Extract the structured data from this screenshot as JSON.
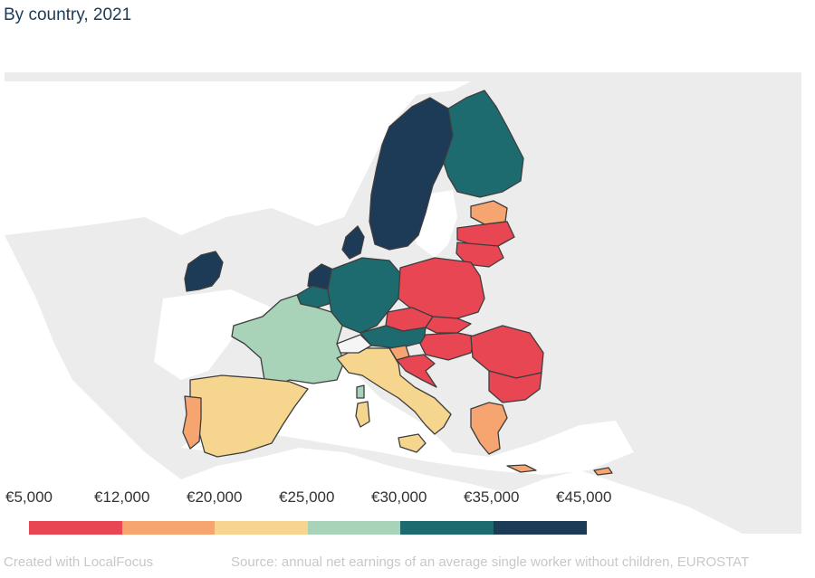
{
  "subtitle": "By country, 2021",
  "legend": {
    "labels": [
      "€5,000",
      "€12,000",
      "€20,000",
      "€25,000",
      "€30,000",
      "€35,000",
      "€45,000"
    ],
    "colors": [
      "#e84652",
      "#f6a470",
      "#f6d68f",
      "#a9d3b9",
      "#1d6b6e",
      "#1d3a57"
    ]
  },
  "map_colors": {
    "background_land": "#ececec",
    "sea": "#ffffff",
    "border": "#3d3d3d"
  },
  "regions": [
    {
      "name": "Ireland",
      "bin": 5
    },
    {
      "name": "Netherlands",
      "bin": 5
    },
    {
      "name": "Sweden",
      "bin": 5
    },
    {
      "name": "Denmark",
      "bin": 5
    },
    {
      "name": "Finland",
      "bin": 4
    },
    {
      "name": "Germany",
      "bin": 4
    },
    {
      "name": "Belgium",
      "bin": 4
    },
    {
      "name": "Austria",
      "bin": 4
    },
    {
      "name": "France",
      "bin": 3
    },
    {
      "name": "Spain",
      "bin": 2
    },
    {
      "name": "Italy",
      "bin": 2
    },
    {
      "name": "Portugal",
      "bin": 1
    },
    {
      "name": "Estonia",
      "bin": 1
    },
    {
      "name": "Greece",
      "bin": 1
    },
    {
      "name": "Cyprus",
      "bin": 1
    },
    {
      "name": "Slovenia",
      "bin": 1
    },
    {
      "name": "Latvia",
      "bin": 0
    },
    {
      "name": "Lithuania",
      "bin": 0
    },
    {
      "name": "Poland",
      "bin": 0
    },
    {
      "name": "Czechia",
      "bin": 0
    },
    {
      "name": "Slovakia",
      "bin": 0
    },
    {
      "name": "Hungary",
      "bin": 0
    },
    {
      "name": "Romania",
      "bin": 0
    },
    {
      "name": "Bulgaria",
      "bin": 0
    },
    {
      "name": "Croatia",
      "bin": 0
    }
  ],
  "footer": {
    "credit": "Created with LocalFocus",
    "source": "Source:  annual net earnings of an average single worker without children, EUROSTAT"
  }
}
